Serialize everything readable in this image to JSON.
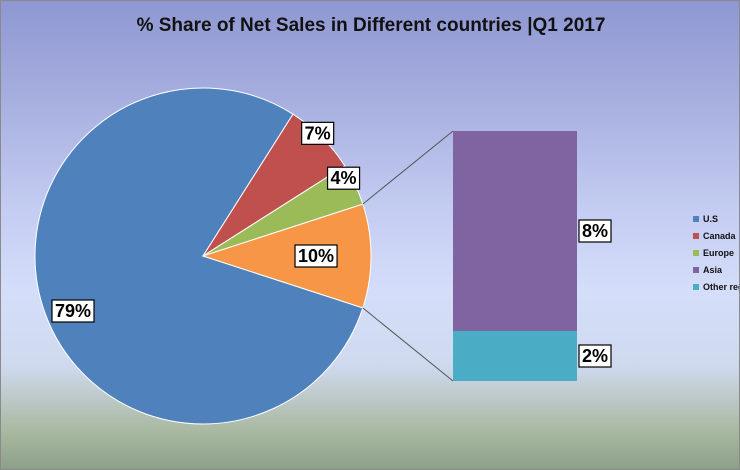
{
  "chart_data": {
    "type": "pie",
    "subtype": "bar-of-pie",
    "title": "% Share of Net Sales in Different countries |Q1 2017",
    "slices": [
      {
        "name": "U.S",
        "value": 79,
        "label": "79%",
        "color": "#4f81bd"
      },
      {
        "name": "Canada",
        "value": 7,
        "label": "7%",
        "color": "#c0504d"
      },
      {
        "name": "Europe",
        "value": 4,
        "label": "4%",
        "color": "#9bbb59"
      },
      {
        "name": "Other",
        "value": 10,
        "label": "10%",
        "color": "#f79646"
      }
    ],
    "secondary_bar": [
      {
        "name": "Asia",
        "value": 8,
        "label": "8%",
        "color": "#8064a2"
      },
      {
        "name": "Other reg",
        "value": 2,
        "label": "2%",
        "color": "#4bacc6"
      }
    ],
    "legend": [
      {
        "name": "U.S",
        "color": "#4f81bd"
      },
      {
        "name": "Canada",
        "color": "#c0504d"
      },
      {
        "name": "Europe",
        "color": "#9bbb59"
      },
      {
        "name": "Asia",
        "color": "#8064a2"
      },
      {
        "name": "Other reg",
        "color": "#4bacc6"
      }
    ],
    "legend_position": "right"
  }
}
